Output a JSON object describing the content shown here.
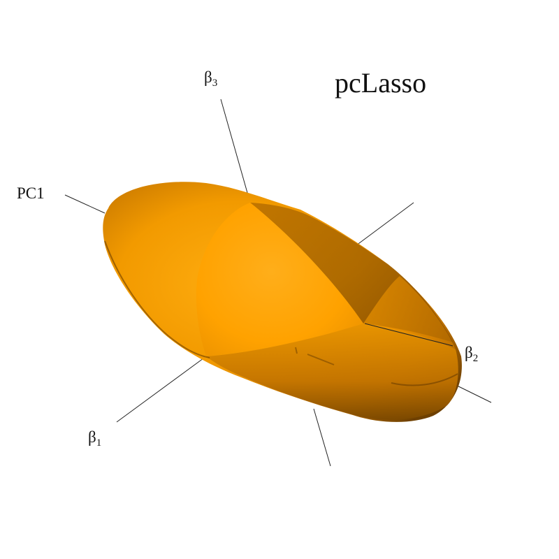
{
  "title": "pcLasso",
  "axes": {
    "beta1": {
      "symbol": "β",
      "subscript": "1"
    },
    "beta2": {
      "symbol": "β",
      "subscript": "2"
    },
    "beta3": {
      "symbol": "β",
      "subscript": "3"
    },
    "pc1": {
      "label": "PC1"
    }
  },
  "colors": {
    "body_light": "#ffa500",
    "body_mid": "#e08a00",
    "body_dark": "#8a5200",
    "background": "#ffffff",
    "axis": "#222222"
  }
}
